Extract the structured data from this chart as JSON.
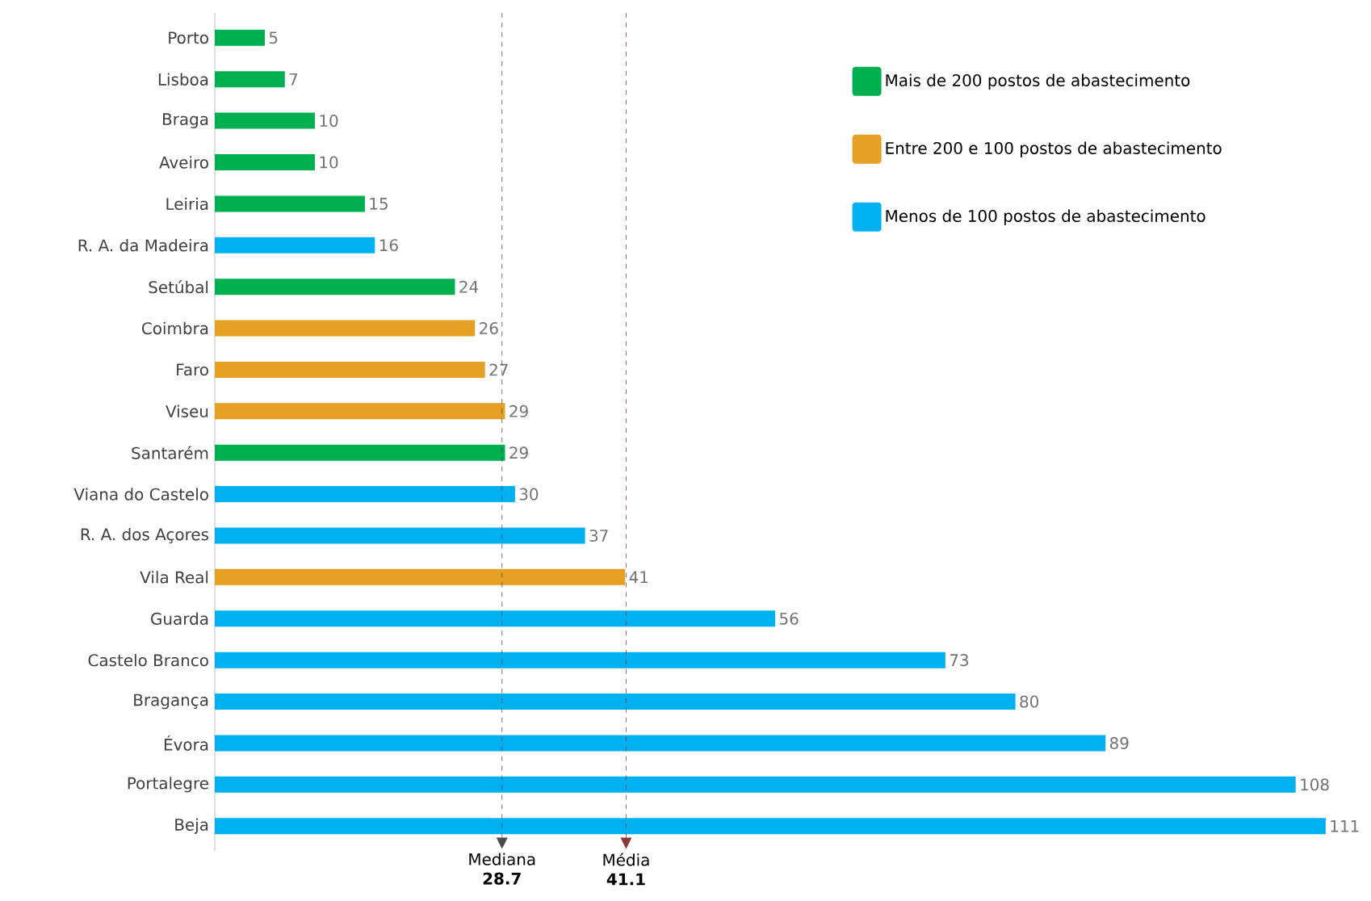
{
  "chart_data": {
    "type": "bar",
    "orientation": "horizontal",
    "categories": [
      "Porto",
      "Lisboa",
      "Braga",
      "Aveiro",
      "Leiria",
      "R. A. da Madeira",
      "Setúbal",
      "Coimbra",
      "Faro",
      "Viseu",
      "Santarém",
      "Viana do Castelo",
      "R. A. dos Açores",
      "Vila Real",
      "Guarda",
      "Castelo Branco",
      "Bragança",
      "Évora",
      "Portalegre",
      "Beja"
    ],
    "series": [
      {
        "name": "Mais de 200 postos de abastecimento",
        "color": "#00b050",
        "values": [
          5,
          7,
          10,
          10,
          15,
          null,
          24,
          null,
          null,
          null,
          29,
          null,
          null,
          null,
          null,
          null,
          null,
          null,
          null,
          null
        ]
      },
      {
        "name": "Entre 200 e 100 postos de abastecimento",
        "color": "#e6a023",
        "values": [
          null,
          null,
          null,
          null,
          null,
          null,
          null,
          26,
          27,
          29,
          null,
          null,
          null,
          41,
          null,
          null,
          null,
          null,
          null,
          null
        ]
      },
      {
        "name": "Menos de 100 postos de abastecimento",
        "color": "#00b0f0",
        "values": [
          null,
          null,
          null,
          null,
          null,
          16,
          null,
          null,
          null,
          null,
          null,
          30,
          37,
          null,
          56,
          73,
          80,
          89,
          108,
          111
        ]
      }
    ],
    "tick_labels": "y",
    "data_labels": true,
    "legend": "top right",
    "ref_lines": [
      {
        "axis": "x",
        "value": 28.7,
        "label": "Mediana **28.7**",
        "color": "#4a4a4a",
        "line_style": "dashed"
      },
      {
        "axis": "x",
        "value": 41.1,
        "label": "Média **41.1**",
        "color": "#8b3a3a",
        "line_style": "dashed"
      }
    ]
  }
}
